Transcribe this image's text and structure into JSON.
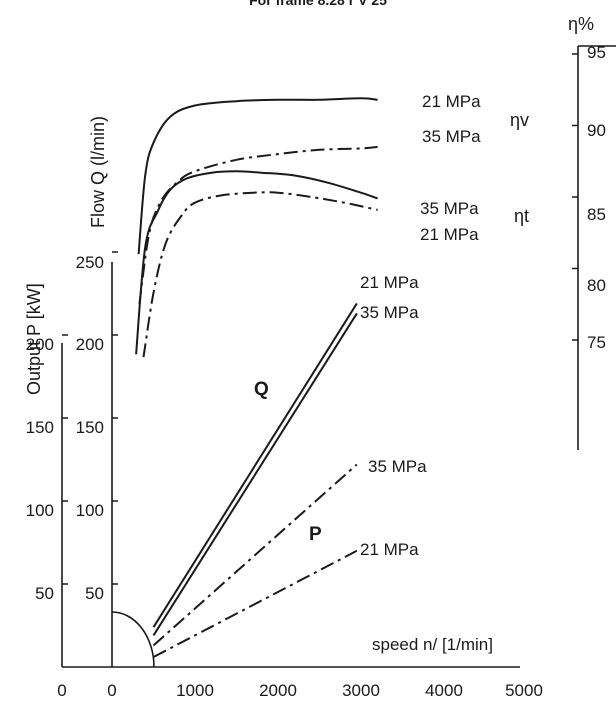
{
  "chart_data": {
    "type": "line",
    "title": "For frame 8.28 r V 25",
    "xlabel": "speed n/ [1/min]",
    "ylabel_flow": "Flow Q (l/min)",
    "ylabel_power": "Output P [kW]",
    "ylabel_eff": "η%",
    "x_ticks_speed": [
      "0",
      "1000",
      "2000",
      "3000",
      "4000",
      "5000"
    ],
    "x_ticks_power_axis": [
      "0"
    ],
    "y_ticks_flow": [
      "50",
      "100",
      "150",
      "200",
      "250"
    ],
    "y_ticks_power": [
      "50",
      "100",
      "150",
      "200"
    ],
    "y_ticks_eff": [
      "75",
      "80",
      "85",
      "90",
      "95"
    ],
    "xlim": [
      0,
      5000
    ],
    "ylim_flow": [
      0,
      250
    ],
    "ylim_eff": [
      70,
      96
    ],
    "series": [
      {
        "name": "21 MPa",
        "group": "ηv",
        "axis": "eff",
        "style": "solid",
        "x": [
          320,
          400,
          500,
          700,
          1000,
          1500,
          2000,
          2500,
          3000,
          3200
        ],
        "y": [
          81.0,
          86.5,
          88.8,
          90.6,
          91.4,
          91.7,
          91.8,
          91.8,
          91.9,
          91.8
        ]
      },
      {
        "name": "35 MPa",
        "group": "ηv",
        "axis": "eff",
        "style": "dashdot",
        "x": [
          330,
          450,
          600,
          800,
          1000,
          1500,
          2000,
          2500,
          3000,
          3200
        ],
        "y": [
          77.5,
          82.5,
          84.8,
          86.1,
          86.8,
          87.6,
          88.0,
          88.3,
          88.4,
          88.5
        ]
      },
      {
        "name": "35 MPa",
        "group": "ηt",
        "axis": "eff",
        "style": "solid",
        "x": [
          290,
          400,
          550,
          700,
          900,
          1200,
          1500,
          1800,
          2200,
          2600,
          3000,
          3200
        ],
        "y": [
          74.0,
          81.5,
          84.0,
          85.5,
          86.3,
          86.7,
          86.8,
          86.7,
          86.5,
          86.0,
          85.3,
          84.9
        ]
      },
      {
        "name": "21 MPa",
        "group": "ηt",
        "axis": "eff",
        "style": "dashdot",
        "x": [
          380,
          500,
          650,
          850,
          1000,
          1300,
          1700,
          2000,
          2400,
          2800,
          3200
        ],
        "y": [
          73.8,
          78.3,
          81.8,
          83.8,
          84.6,
          85.1,
          85.3,
          85.3,
          85.0,
          84.6,
          84.1
        ]
      },
      {
        "name": "21 MPa",
        "group": "Q",
        "axis": "flow",
        "style": "solid",
        "x": [
          500,
          2950
        ],
        "y": [
          24,
          219
        ]
      },
      {
        "name": "35 MPa",
        "group": "Q",
        "axis": "flow",
        "style": "solid",
        "x": [
          500,
          2950
        ],
        "y": [
          19,
          213
        ]
      },
      {
        "name": "35 MPa",
        "group": "P",
        "axis": "flow",
        "style": "dashdot",
        "x": [
          500,
          2950
        ],
        "y": [
          13,
          122
        ]
      },
      {
        "name": "21 MPa",
        "group": "P",
        "axis": "flow",
        "style": "dashdot",
        "x": [
          500,
          2950
        ],
        "y": [
          6,
          70
        ]
      }
    ],
    "annotations": [
      {
        "text": "21 MPa",
        "near": "ηv solid"
      },
      {
        "text": "35 MPa",
        "near": "ηv dashdot"
      },
      {
        "text": "ηv",
        "near": "right of ηv labels"
      },
      {
        "text": "35 MPa",
        "near": "ηt solid"
      },
      {
        "text": "21 MPa",
        "near": "ηt dashdot"
      },
      {
        "text": "ηt",
        "near": "right of ηt labels"
      },
      {
        "text": "21 MPa",
        "near": "upper Q line end"
      },
      {
        "text": "35 MPa",
        "near": "lower Q line end"
      },
      {
        "text": "Q",
        "near": "Q lines"
      },
      {
        "text": "35 MPa",
        "near": "upper P line end"
      },
      {
        "text": "P",
        "near": "P lines"
      },
      {
        "text": "21 MPa",
        "near": "lower P line end"
      }
    ],
    "grid": false,
    "legend": "none"
  },
  "colors": {
    "line": "#1a1a1a",
    "background": "#ffffff"
  }
}
